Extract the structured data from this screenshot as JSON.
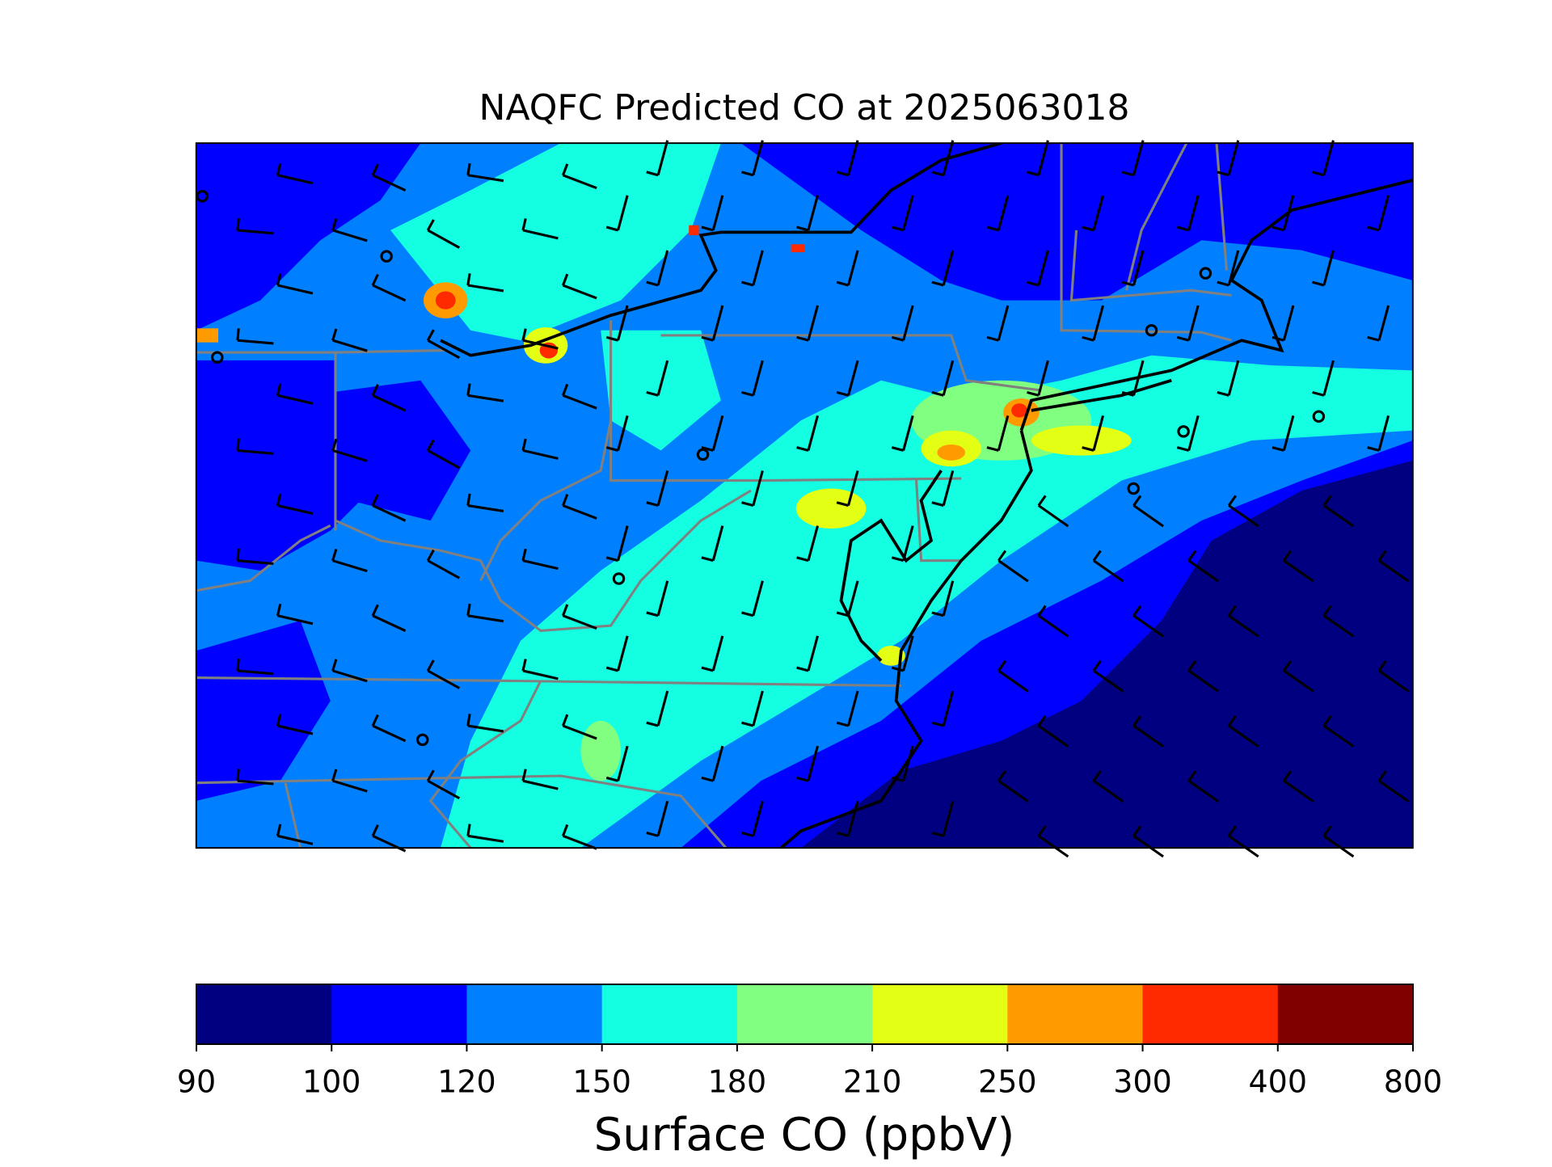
{
  "title": "NAQFC Predicted CO at 2025063018",
  "colorbar": {
    "label": "Surface CO (ppbV)",
    "ticks": [
      90,
      100,
      120,
      150,
      180,
      210,
      250,
      300,
      400,
      800
    ],
    "colors": [
      "#000080",
      "#0000ff",
      "#0080ff",
      "#14ffe2",
      "#80ff80",
      "#e2ff14",
      "#ff9a00",
      "#ff2a00",
      "#800000"
    ]
  }
}
